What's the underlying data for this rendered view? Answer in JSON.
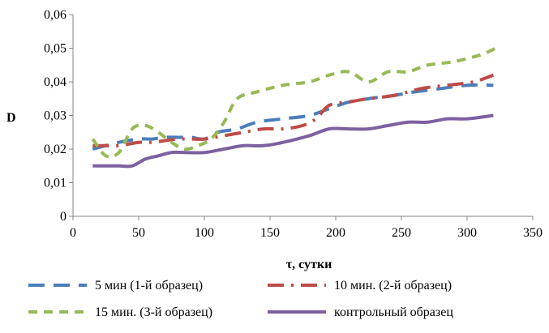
{
  "chart_data": {
    "type": "line",
    "title": "",
    "xlabel": "τ, сутки",
    "ylabel": "D",
    "xlim": [
      0,
      350
    ],
    "ylim": [
      0,
      0.06
    ],
    "x_ticks": [
      0,
      50,
      100,
      150,
      200,
      250,
      300,
      350
    ],
    "x_tick_labels": [
      "0",
      "50",
      "100",
      "150",
      "200",
      "250",
      "300",
      "350"
    ],
    "y_ticks": [
      0,
      0.01,
      0.02,
      0.03,
      0.04,
      0.05,
      0.06
    ],
    "y_tick_labels": [
      "0",
      "0,01",
      "0,02",
      "0,03",
      "0,04",
      "0,05",
      "0,06"
    ],
    "grid": false,
    "legend_position": "bottom",
    "series": [
      {
        "name": "5 мин (1-й образец)",
        "color": "#4a7ebb",
        "dash": "long-dash",
        "x": [
          15,
          25,
          35,
          50,
          60,
          70,
          80,
          90,
          100,
          110,
          125,
          140,
          160,
          180,
          195,
          210,
          225,
          245,
          260,
          280,
          300,
          320
        ],
        "y": [
          0.02,
          0.021,
          0.022,
          0.023,
          0.023,
          0.0235,
          0.0235,
          0.0235,
          0.023,
          0.025,
          0.026,
          0.028,
          0.029,
          0.03,
          0.032,
          0.034,
          0.035,
          0.036,
          0.037,
          0.038,
          0.039,
          0.039
        ]
      },
      {
        "name": "10 мин. (2-й образец)",
        "color": "#be4b48",
        "dash": "dash-dot",
        "x": [
          15,
          25,
          35,
          50,
          60,
          70,
          80,
          90,
          100,
          115,
          130,
          145,
          160,
          175,
          185,
          195,
          210,
          225,
          245,
          265,
          285,
          305,
          320
        ],
        "y": [
          0.021,
          0.021,
          0.021,
          0.022,
          0.022,
          0.0225,
          0.023,
          0.023,
          0.023,
          0.024,
          0.025,
          0.026,
          0.026,
          0.027,
          0.029,
          0.033,
          0.034,
          0.035,
          0.036,
          0.038,
          0.039,
          0.04,
          0.042
        ]
      },
      {
        "name": "15 мин. (3-й образец)",
        "color": "#98b954",
        "dash": "short-dash",
        "x": [
          15,
          25,
          35,
          45,
          55,
          65,
          75,
          85,
          95,
          105,
          115,
          125,
          140,
          160,
          180,
          195,
          210,
          225,
          240,
          255,
          270,
          290,
          310,
          322
        ],
        "y": [
          0.023,
          0.018,
          0.019,
          0.026,
          0.027,
          0.025,
          0.022,
          0.02,
          0.021,
          0.023,
          0.028,
          0.035,
          0.037,
          0.039,
          0.04,
          0.042,
          0.043,
          0.04,
          0.043,
          0.043,
          0.045,
          0.046,
          0.048,
          0.05
        ]
      },
      {
        "name": "контрольный образец",
        "color": "#7d60a0",
        "dash": "solid",
        "x": [
          15,
          25,
          35,
          45,
          55,
          65,
          75,
          85,
          100,
          115,
          130,
          145,
          160,
          180,
          195,
          210,
          225,
          240,
          255,
          270,
          285,
          300,
          320
        ],
        "y": [
          0.015,
          0.015,
          0.015,
          0.015,
          0.017,
          0.018,
          0.019,
          0.019,
          0.019,
          0.02,
          0.021,
          0.021,
          0.022,
          0.024,
          0.026,
          0.026,
          0.026,
          0.027,
          0.028,
          0.028,
          0.029,
          0.029,
          0.03
        ]
      }
    ]
  }
}
